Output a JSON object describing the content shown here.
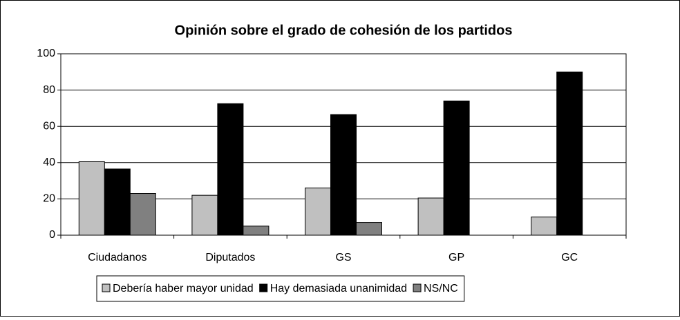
{
  "chart_data": {
    "type": "bar",
    "title": "Opinión sobre el grado de cohesión  de los partidos",
    "categories": [
      "Ciudadanos",
      "Diputados",
      "GS",
      "GP",
      "GC"
    ],
    "series": [
      {
        "name": "Debería haber mayor unidad",
        "color": "#c0c0c0",
        "values": [
          40.5,
          22,
          26,
          20.5,
          10
        ]
      },
      {
        "name": "Hay demasiada unanimidad",
        "color": "#000000",
        "values": [
          36.5,
          72.5,
          66.5,
          74,
          90
        ]
      },
      {
        "name": "NS/NC",
        "color": "#808080",
        "values": [
          23,
          5,
          7,
          0,
          0
        ]
      }
    ],
    "ylim": [
      0,
      100
    ],
    "yticks": [
      0,
      20,
      40,
      60,
      80,
      100
    ],
    "grid": true,
    "legend": "bottom"
  }
}
